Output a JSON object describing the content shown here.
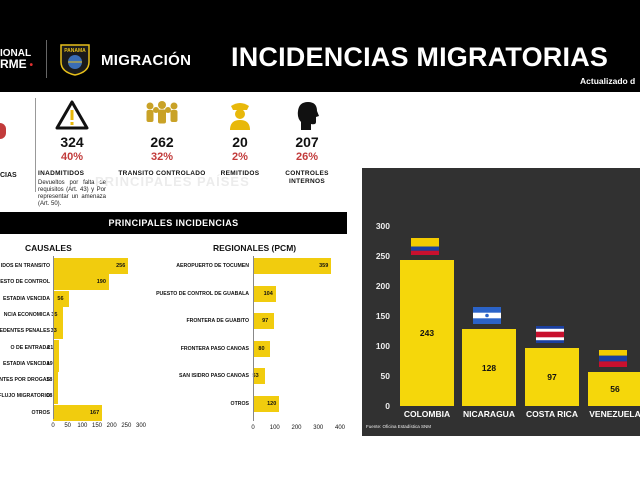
{
  "header": {
    "left_line1": "IONAL",
    "left_line2": "RME",
    "brand": "MIGRACIÓN",
    "emblem_text": "PANAMA",
    "title": "INCIDENCIAS MIGRATORIAS",
    "updated": "Actualizado d"
  },
  "left_partial": {
    "label": "CIAS",
    "accent": "#c23b3b"
  },
  "stats": [
    {
      "icon": "warning-icon",
      "number": "324",
      "pct": "40%",
      "label": "INADMITIDOS",
      "desc": "Devueltos por falta de requisitos (Art. 43) y Por representar un amenaza (Art. 50)."
    },
    {
      "icon": "people-group-icon",
      "number": "262",
      "pct": "32%",
      "label": "TRANSITO CONTROLADO",
      "desc": ""
    },
    {
      "icon": "officer-icon",
      "number": "20",
      "pct": "2%",
      "label": "REMITIDOS",
      "desc": ""
    },
    {
      "icon": "head-profile-icon",
      "number": "207",
      "pct": "26%",
      "label": "CONTROLES INTERNOS",
      "desc": ""
    }
  ],
  "incidences_title": "PRINCIPALES INCIDENCIAS",
  "causales": {
    "title": "CAUSALES",
    "labels": [
      "IDOS EN TRANSITO",
      "ESTO DE CONTROL",
      "ESTADIA VENCIDA",
      "NCIA ECONOMICA",
      "EDENTES PENALES",
      "O DE ENTRADA",
      "ESTADIA VENCIDA",
      "NTES POR DROGAS",
      "FLUJO MIGRATORIO",
      "OTROS"
    ],
    "values": [
      256,
      190,
      56,
      35,
      33,
      21,
      19,
      18,
      18,
      167
    ],
    "ticks": [
      "0",
      "50",
      "100",
      "150",
      "200",
      "250",
      "300"
    ],
    "xlim": [
      0,
      300
    ]
  },
  "regionales": {
    "title": "REGIONALES (PCM)",
    "labels": [
      "AEROPUERTO DE TOCUMEN",
      "PUESTO DE CONTROL DE GUABALA",
      "FRONTERA DE GUABITO",
      "FRONTERA PASO CANOAS",
      "SAN ISIDRO PASO CANOAS",
      "OTROS"
    ],
    "values": [
      359,
      104,
      97,
      80,
      53,
      120
    ],
    "ticks": [
      "0",
      "100",
      "200",
      "300",
      "400"
    ],
    "xlim": [
      0,
      400
    ]
  },
  "countries": {
    "title": "PRINCIPALES PAÍSES",
    "categories": [
      "COLOMBIA",
      "NICARAGUA",
      "COSTA RICA",
      "VENEZUELA"
    ],
    "values": [
      243,
      128,
      97,
      56
    ],
    "ticks": [
      "0",
      "50",
      "100",
      "150",
      "200",
      "250",
      "300"
    ],
    "ylim": [
      0,
      300
    ],
    "source": "Fuente: Oficina Estadística SNM"
  },
  "chart_data": [
    {
      "type": "bar",
      "title": "CAUSALES",
      "categories": [
        "IDOS EN TRANSITO",
        "ESTO DE CONTROL",
        "ESTADIA VENCIDA",
        "NCIA ECONOMICA",
        "EDENTES PENALES",
        "O DE ENTRADA",
        "ESTADIA VENCIDA",
        "NTES POR DROGAS",
        "FLUJO MIGRATORIO",
        "OTROS"
      ],
      "values": [
        256,
        190,
        56,
        35,
        33,
        21,
        19,
        18,
        18,
        167
      ],
      "xlim": [
        0,
        300
      ]
    },
    {
      "type": "bar",
      "title": "REGIONALES (PCM)",
      "categories": [
        "AEROPUERTO DE TOCUMEN",
        "PUESTO DE CONTROL DE GUABALA",
        "FRONTERA DE GUABITO",
        "FRONTERA PASO CANOAS",
        "SAN ISIDRO PASO CANOAS",
        "OTROS"
      ],
      "values": [
        359,
        104,
        97,
        80,
        53,
        120
      ],
      "xlim": [
        0,
        400
      ]
    },
    {
      "type": "bar",
      "title": "PRINCIPALES PAÍSES",
      "categories": [
        "COLOMBIA",
        "NICARAGUA",
        "COSTA RICA",
        "VENEZUELA"
      ],
      "values": [
        243,
        128,
        97,
        56
      ],
      "ylim": [
        0,
        300
      ]
    }
  ],
  "colors": {
    "bar_yellow": "#f1cc0e",
    "accent_red": "#c23b3b",
    "dark_panel": "#313131"
  }
}
